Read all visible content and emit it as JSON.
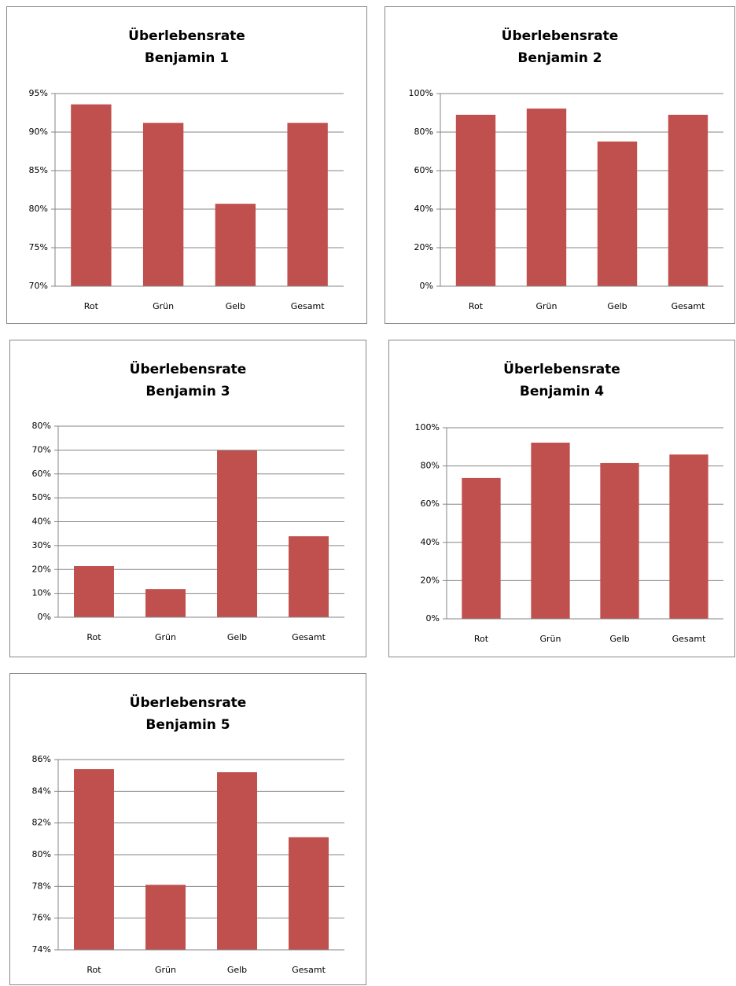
{
  "chart_data": [
    {
      "type": "bar",
      "title": "Überlebensrate",
      "subtitle": "Benjamin 1",
      "categories": [
        "Rot",
        "Grün",
        "Gelb",
        "Gesamt"
      ],
      "values": [
        93.6,
        91.2,
        80.7,
        91.2
      ],
      "color": "#c0504d",
      "ylim": [
        70,
        95
      ],
      "yticks": [
        {
          "value": 70,
          "label": "70%"
        },
        {
          "value": 75,
          "label": "75%"
        },
        {
          "value": 80,
          "label": "80%"
        },
        {
          "value": 85,
          "label": "85%"
        },
        {
          "value": 90,
          "label": "90%"
        },
        {
          "value": 95,
          "label": "95%"
        }
      ],
      "grid": true
    },
    {
      "type": "bar",
      "title": "Überlebensrate",
      "subtitle": "Benjamin 2",
      "categories": [
        "Rot",
        "Grün",
        "Gelb",
        "Gesamt"
      ],
      "values": [
        89,
        92.2,
        75.1,
        89
      ],
      "color": "#c0504d",
      "ylim": [
        0,
        100
      ],
      "yticks": [
        {
          "value": 0,
          "label": "0%"
        },
        {
          "value": 20,
          "label": "20%"
        },
        {
          "value": 40,
          "label": "40%"
        },
        {
          "value": 60,
          "label": "60%"
        },
        {
          "value": 80,
          "label": "80%"
        },
        {
          "value": 100,
          "label": "100%"
        }
      ],
      "grid": true
    },
    {
      "type": "bar",
      "title": "Überlebensrate",
      "subtitle": "Benjamin 3",
      "categories": [
        "Rot",
        "Grün",
        "Gelb",
        "Gesamt"
      ],
      "values": [
        21.4,
        11.8,
        69.8,
        33.9
      ],
      "color": "#c0504d",
      "ylim": [
        0,
        80
      ],
      "yticks": [
        {
          "value": 0,
          "label": "0%"
        },
        {
          "value": 10,
          "label": "10%"
        },
        {
          "value": 20,
          "label": "20%"
        },
        {
          "value": 30,
          "label": "30%"
        },
        {
          "value": 40,
          "label": "40%"
        },
        {
          "value": 50,
          "label": "50%"
        },
        {
          "value": 60,
          "label": "60%"
        },
        {
          "value": 70,
          "label": "70%"
        },
        {
          "value": 80,
          "label": "80%"
        }
      ],
      "grid": true
    },
    {
      "type": "bar",
      "title": "Überlebensrate",
      "subtitle": "Benjamin 4",
      "categories": [
        "Rot",
        "Grün",
        "Gelb",
        "Gesamt"
      ],
      "values": [
        73.7,
        92.2,
        81.5,
        86
      ],
      "color": "#c0504d",
      "ylim": [
        0,
        100
      ],
      "yticks": [
        {
          "value": 0,
          "label": "0%"
        },
        {
          "value": 20,
          "label": "20%"
        },
        {
          "value": 40,
          "label": "40%"
        },
        {
          "value": 60,
          "label": "60%"
        },
        {
          "value": 80,
          "label": "80%"
        },
        {
          "value": 100,
          "label": "100%"
        }
      ],
      "grid": true
    },
    {
      "type": "bar",
      "title": "Überlebensrate",
      "subtitle": "Benjamin 5",
      "categories": [
        "Rot",
        "Grün",
        "Gelb",
        "Gesamt"
      ],
      "values": [
        85.4,
        78.1,
        85.2,
        81.1
      ],
      "color": "#c0504d",
      "ylim": [
        74,
        86
      ],
      "yticks": [
        {
          "value": 74,
          "label": "74%"
        },
        {
          "value": 76,
          "label": "76%"
        },
        {
          "value": 78,
          "label": "78%"
        },
        {
          "value": 80,
          "label": "80%"
        },
        {
          "value": 82,
          "label": "82%"
        },
        {
          "value": 84,
          "label": "84%"
        },
        {
          "value": 86,
          "label": "86%"
        }
      ],
      "grid": true
    }
  ]
}
